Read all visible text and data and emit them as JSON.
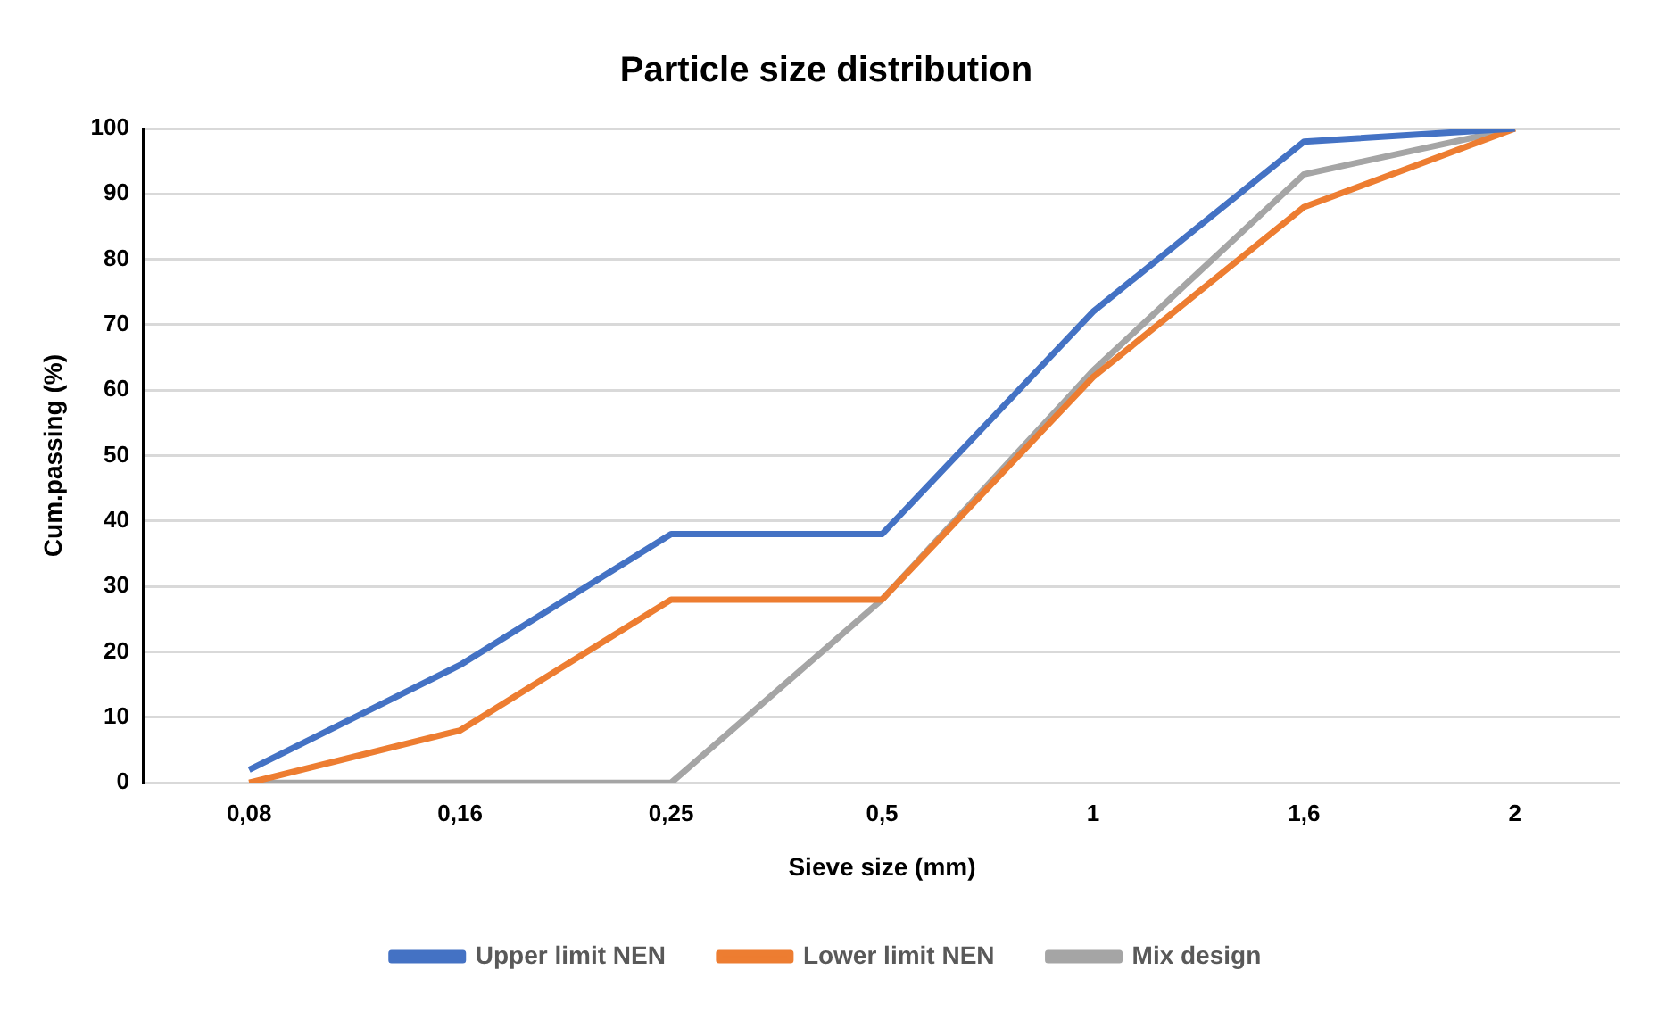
{
  "chart_data": {
    "type": "line",
    "title": "Particle size distribution",
    "xlabel": "Sieve size (mm)",
    "ylabel": "Cum.passing (%)",
    "categories": [
      "0,08",
      "0,16",
      "0,25",
      "0,5",
      "1",
      "1,6",
      "2"
    ],
    "series": [
      {
        "name": "Upper limit NEN",
        "color": "#4472c4",
        "values": [
          2,
          18,
          38,
          38,
          72,
          98,
          100
        ]
      },
      {
        "name": "Lower limit NEN",
        "color": "#ed7d31",
        "values": [
          0,
          8,
          28,
          28,
          62,
          88,
          100
        ]
      },
      {
        "name": "Mix design",
        "color": "#a5a5a5",
        "values": [
          0,
          0,
          0,
          28,
          63,
          93,
          100
        ]
      }
    ],
    "ylim": [
      0,
      100
    ],
    "yticks": [
      0,
      10,
      20,
      30,
      40,
      50,
      60,
      70,
      80,
      90,
      100
    ],
    "grid": "y",
    "legend": "bottom",
    "marker": "none",
    "line_style": "solid"
  }
}
